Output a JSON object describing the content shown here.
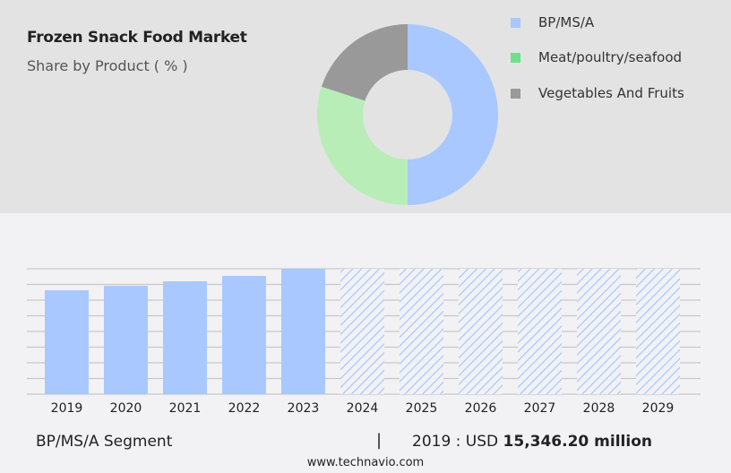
{
  "title": "Frozen Snack Food Market",
  "subtitle": "Share by Product ( % )",
  "chart_data": [
    {
      "type": "pie",
      "variant": "donut",
      "legend_position": "right",
      "slices": [
        {
          "name": "BP/MS/A",
          "value": 50,
          "color": "#a8c8ff"
        },
        {
          "name": "Meat/poultry/seafood",
          "value": 30,
          "color": "#b8edb8",
          "legend_color": "#6ee08a"
        },
        {
          "name": "Vegetables And Fruits",
          "value": 20,
          "color": "#999999"
        }
      ]
    },
    {
      "type": "bar",
      "categories": [
        "2019",
        "2020",
        "2021",
        "2022",
        "2023",
        "2024",
        "2025",
        "2026",
        "2027",
        "2028",
        "2029"
      ],
      "values": [
        15346.2,
        16000,
        16670,
        17460,
        18520,
        null,
        null,
        null,
        null,
        null,
        null
      ],
      "forecast_from": "2024",
      "forecast_style": "hatched",
      "color": "#a8c8ff",
      "grid": true,
      "ylim": [
        0,
        18520
      ]
    }
  ],
  "footer": {
    "segment": "BP/MS/A Segment",
    "separator": "|",
    "year_label": "2019 : USD",
    "value": "15,346.20 million",
    "url": "www.technavio.com"
  }
}
